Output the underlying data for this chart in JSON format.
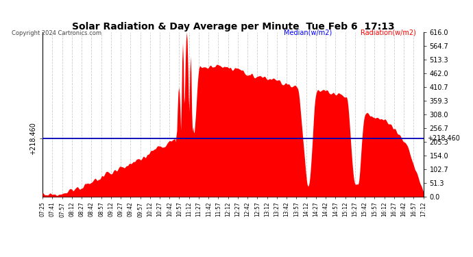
{
  "title": "Solar Radiation & Day Average per Minute  Tue Feb 6  17:13",
  "copyright": "Copyright 2024 Cartronics.com",
  "median_value": 218.46,
  "median_label_left": "+218.460",
  "median_label_right": "+218.460",
  "y_max": 616.0,
  "y_min": 0.0,
  "y_ticks": [
    0.0,
    51.3,
    102.7,
    154.0,
    205.3,
    256.7,
    308.0,
    359.3,
    410.7,
    462.0,
    513.3,
    564.7,
    616.0
  ],
  "legend_median_color": "#0000ff",
  "legend_radiation_color": "#ff0000",
  "legend_median_text": "Median(w/m2)",
  "legend_radiation_text": "Radiation(w/m2)",
  "fill_color": "#ff0000",
  "median_line_color": "#0000bb",
  "background_color": "#ffffff",
  "grid_color": "#cccccc",
  "title_color": "#000000",
  "x_labels": [
    "07:25",
    "07:41",
    "07:57",
    "08:12",
    "08:27",
    "08:42",
    "08:57",
    "09:12",
    "09:27",
    "09:42",
    "09:57",
    "10:12",
    "10:27",
    "10:42",
    "10:57",
    "11:12",
    "11:27",
    "11:42",
    "11:57",
    "12:12",
    "12:27",
    "12:42",
    "12:57",
    "13:12",
    "13:27",
    "13:42",
    "13:57",
    "14:12",
    "14:27",
    "14:42",
    "14:57",
    "15:12",
    "15:27",
    "15:42",
    "15:57",
    "16:12",
    "16:27",
    "16:42",
    "16:57",
    "17:12"
  ]
}
